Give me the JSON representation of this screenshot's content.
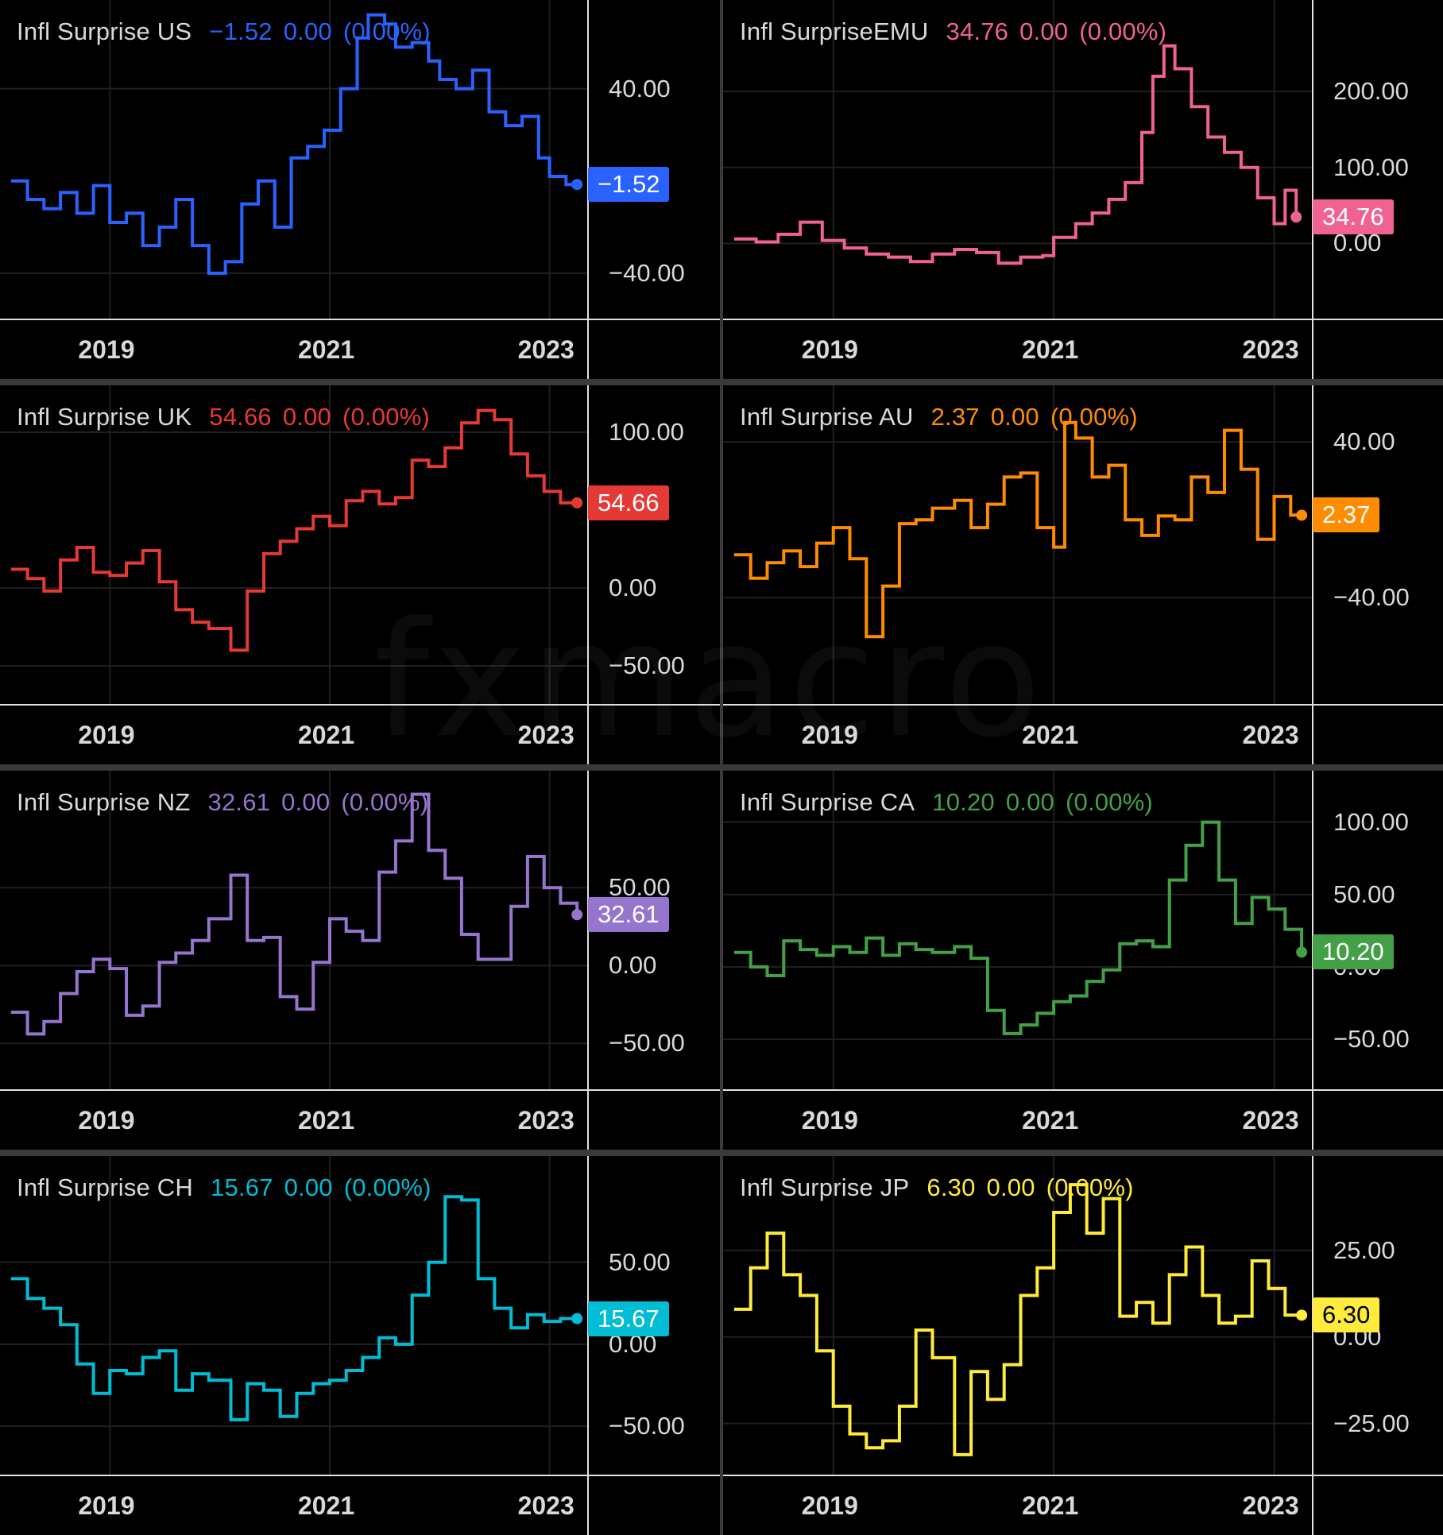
{
  "watermark": "fxmacro",
  "chart_data": [
    {
      "type": "line",
      "name": "Infl Surprise US",
      "value": "−1.52",
      "change": "0.00",
      "change_pct": "(0.00%)",
      "last_label": "−1.52",
      "color": "#2962ff",
      "x_ticks": [
        "2019",
        "2021",
        "2023"
      ],
      "y_ticks": [
        {
          "v": 40,
          "label": "40.00"
        },
        {
          "v": -40,
          "label": "−40.00"
        }
      ],
      "ylim": [
        -60,
        75
      ],
      "x": [
        2018.1,
        2018.25,
        2018.4,
        2018.55,
        2018.7,
        2018.85,
        2019.0,
        2019.15,
        2019.3,
        2019.45,
        2019.6,
        2019.75,
        2019.9,
        2020.05,
        2020.2,
        2020.35,
        2020.5,
        2020.65,
        2020.8,
        2020.95,
        2021.1,
        2021.25,
        2021.35,
        2021.5,
        2021.6,
        2021.75,
        2021.9,
        2022.0,
        2022.15,
        2022.3,
        2022.45,
        2022.6,
        2022.75,
        2022.9,
        2023.0,
        2023.15,
        2023.25
      ],
      "y": [
        0,
        -8,
        -12,
        -5,
        -14,
        -2,
        -18,
        -14,
        -28,
        -20,
        -8,
        -28,
        -40,
        -35,
        -10,
        0,
        -20,
        10,
        15,
        22,
        40,
        62,
        72,
        68,
        58,
        60,
        52,
        44,
        40,
        48,
        30,
        24,
        28,
        10,
        2,
        -1.52,
        -1.52
      ]
    },
    {
      "type": "line",
      "name": "Infl SurpriseEMU",
      "value": "34.76",
      "change": "0.00",
      "change_pct": "(0.00%)",
      "last_label": "34.76",
      "color": "#f06292",
      "x_ticks": [
        "2019",
        "2021",
        "2023"
      ],
      "y_ticks": [
        {
          "v": 200,
          "label": "200.00"
        },
        {
          "v": 100,
          "label": "100.00"
        },
        {
          "v": 0,
          "label": "0.00"
        }
      ],
      "ylim": [
        -100,
        310
      ],
      "x": [
        2018.1,
        2018.3,
        2018.5,
        2018.7,
        2018.9,
        2019.1,
        2019.3,
        2019.5,
        2019.7,
        2019.9,
        2020.1,
        2020.3,
        2020.5,
        2020.7,
        2020.9,
        2021.0,
        2021.2,
        2021.35,
        2021.5,
        2021.65,
        2021.8,
        2021.9,
        2022.0,
        2022.1,
        2022.25,
        2022.4,
        2022.55,
        2022.7,
        2022.85,
        2023.0,
        2023.1,
        2023.2
      ],
      "y": [
        6,
        2,
        12,
        28,
        4,
        -6,
        -14,
        -18,
        -24,
        -14,
        -8,
        -12,
        -26,
        -18,
        -16,
        8,
        26,
        40,
        58,
        80,
        146,
        220,
        260,
        230,
        180,
        140,
        120,
        100,
        60,
        26,
        70,
        34.76
      ]
    },
    {
      "type": "line",
      "name": "Infl Surprise UK",
      "value": "54.66",
      "change": "0.00",
      "change_pct": "(0.00%)",
      "last_label": "54.66",
      "color": "#e53935",
      "x_ticks": [
        "2019",
        "2021",
        "2023"
      ],
      "y_ticks": [
        {
          "v": 100,
          "label": "100.00"
        },
        {
          "v": 0,
          "label": "0.00"
        },
        {
          "v": -50,
          "label": "−50.00"
        }
      ],
      "ylim": [
        -75,
        125
      ],
      "x": [
        2018.1,
        2018.25,
        2018.4,
        2018.55,
        2018.7,
        2018.85,
        2019.0,
        2019.15,
        2019.3,
        2019.45,
        2019.6,
        2019.75,
        2019.9,
        2020.1,
        2020.25,
        2020.4,
        2020.55,
        2020.7,
        2020.85,
        2021.0,
        2021.15,
        2021.3,
        2021.45,
        2021.6,
        2021.75,
        2021.9,
        2022.05,
        2022.2,
        2022.35,
        2022.5,
        2022.65,
        2022.8,
        2022.95,
        2023.1,
        2023.25
      ],
      "y": [
        12,
        6,
        -2,
        18,
        26,
        10,
        8,
        16,
        24,
        4,
        -14,
        -22,
        -26,
        -40,
        -2,
        22,
        30,
        38,
        46,
        40,
        56,
        62,
        54,
        58,
        82,
        78,
        90,
        106,
        114,
        108,
        86,
        72,
        62,
        54.66,
        54.66
      ]
    },
    {
      "type": "line",
      "name": "Infl Surprise AU",
      "value": "2.37",
      "change": "0.00",
      "change_pct": "(0.00%)",
      "last_label": "2.37",
      "color": "#ff8c00",
      "x_ticks": [
        "2019",
        "2021",
        "2023"
      ],
      "y_ticks": [
        {
          "v": 40,
          "label": "40.00"
        },
        {
          "v": -40,
          "label": "−40.00"
        }
      ],
      "ylim": [
        -95,
        65
      ],
      "x": [
        2018.1,
        2018.25,
        2018.4,
        2018.55,
        2018.7,
        2018.85,
        2019.0,
        2019.15,
        2019.3,
        2019.45,
        2019.6,
        2019.75,
        2019.9,
        2020.1,
        2020.25,
        2020.4,
        2020.55,
        2020.7,
        2020.85,
        2021.0,
        2021.1,
        2021.2,
        2021.35,
        2021.5,
        2021.65,
        2021.8,
        2021.95,
        2022.1,
        2022.25,
        2022.4,
        2022.55,
        2022.7,
        2022.85,
        2023.0,
        2023.15,
        2023.25
      ],
      "y": [
        -18,
        -30,
        -22,
        -16,
        -24,
        -12,
        -4,
        -20,
        -60,
        -34,
        -2,
        0,
        6,
        10,
        -4,
        8,
        22,
        24,
        -4,
        -14,
        50,
        42,
        22,
        28,
        0,
        -8,
        2,
        0,
        22,
        14,
        46,
        26,
        -10,
        12,
        2.37,
        2.37
      ]
    },
    {
      "type": "line",
      "name": "Infl Surprise NZ",
      "value": "32.61",
      "change": "0.00",
      "change_pct": "(0.00%)",
      "last_label": "32.61",
      "color": "#9575cd",
      "x_ticks": [
        "2019",
        "2021",
        "2023"
      ],
      "y_ticks": [
        {
          "v": 50,
          "label": "50.00"
        },
        {
          "v": 0,
          "label": "0.00"
        },
        {
          "v": -50,
          "label": "−50.00"
        }
      ],
      "ylim": [
        -80,
        120
      ],
      "x": [
        2018.1,
        2018.25,
        2018.4,
        2018.55,
        2018.7,
        2018.85,
        2019.0,
        2019.15,
        2019.3,
        2019.45,
        2019.6,
        2019.75,
        2019.9,
        2020.1,
        2020.25,
        2020.4,
        2020.55,
        2020.7,
        2020.85,
        2021.0,
        2021.15,
        2021.3,
        2021.45,
        2021.6,
        2021.75,
        2021.9,
        2022.05,
        2022.2,
        2022.35,
        2022.5,
        2022.65,
        2022.8,
        2022.95,
        2023.1,
        2023.25
      ],
      "y": [
        -30,
        -44,
        -36,
        -18,
        -4,
        4,
        -2,
        -32,
        -26,
        2,
        8,
        16,
        30,
        58,
        16,
        18,
        -20,
        -28,
        2,
        30,
        22,
        16,
        60,
        80,
        110,
        74,
        56,
        20,
        4,
        4,
        38,
        70,
        50,
        40,
        32.61
      ]
    },
    {
      "type": "line",
      "name": "Infl Surprise CA",
      "value": "10.20",
      "change": "0.00",
      "change_pct": "(0.00%)",
      "last_label": "10.20",
      "color": "#43a047",
      "x_ticks": [
        "2019",
        "2021",
        "2023"
      ],
      "y_ticks": [
        {
          "v": 100,
          "label": "100.00"
        },
        {
          "v": 50,
          "label": "50.00"
        },
        {
          "v": 0,
          "label": "0.00"
        },
        {
          "v": -50,
          "label": "−50.00"
        }
      ],
      "ylim": [
        -85,
        130
      ],
      "x": [
        2018.1,
        2018.25,
        2018.4,
        2018.55,
        2018.7,
        2018.85,
        2019.0,
        2019.15,
        2019.3,
        2019.45,
        2019.6,
        2019.75,
        2019.9,
        2020.1,
        2020.25,
        2020.4,
        2020.55,
        2020.7,
        2020.85,
        2021.0,
        2021.15,
        2021.3,
        2021.45,
        2021.6,
        2021.75,
        2021.9,
        2022.05,
        2022.2,
        2022.35,
        2022.5,
        2022.65,
        2022.8,
        2022.95,
        2023.1,
        2023.25
      ],
      "y": [
        10,
        0,
        -6,
        18,
        12,
        8,
        14,
        10,
        20,
        8,
        16,
        12,
        10,
        14,
        6,
        -30,
        -46,
        -40,
        -32,
        -24,
        -20,
        -10,
        -2,
        16,
        18,
        14,
        60,
        84,
        100,
        60,
        30,
        48,
        40,
        26,
        10.2
      ]
    },
    {
      "type": "line",
      "name": "Infl Surprise CH",
      "value": "15.67",
      "change": "0.00",
      "change_pct": "(0.00%)",
      "last_label": "15.67",
      "color": "#00bcd4",
      "x_ticks": [
        "2019",
        "2021",
        "2023"
      ],
      "y_ticks": [
        {
          "v": 50,
          "label": "50.00"
        },
        {
          "v": 0,
          "label": "0.00"
        },
        {
          "v": -50,
          "label": "−50.00"
        }
      ],
      "ylim": [
        -80,
        110
      ],
      "x": [
        2018.1,
        2018.25,
        2018.4,
        2018.55,
        2018.7,
        2018.85,
        2019.0,
        2019.15,
        2019.3,
        2019.45,
        2019.6,
        2019.75,
        2019.9,
        2020.1,
        2020.25,
        2020.4,
        2020.55,
        2020.7,
        2020.85,
        2021.0,
        2021.15,
        2021.3,
        2021.45,
        2021.6,
        2021.75,
        2021.9,
        2022.05,
        2022.2,
        2022.35,
        2022.5,
        2022.65,
        2022.8,
        2022.95,
        2023.1,
        2023.25
      ],
      "y": [
        40,
        28,
        22,
        12,
        -12,
        -30,
        -16,
        -18,
        -8,
        -4,
        -28,
        -18,
        -22,
        -46,
        -24,
        -28,
        -44,
        -30,
        -24,
        -22,
        -16,
        -8,
        4,
        0,
        30,
        50,
        90,
        88,
        40,
        22,
        10,
        18,
        14,
        15.67,
        15.67
      ]
    },
    {
      "type": "line",
      "name": "Infl Surprise JP",
      "value": "6.30",
      "change": "0.00",
      "change_pct": "(0.00%)",
      "last_label": "6.30",
      "color": "#ffeb3b",
      "x_ticks": [
        "2019",
        "2021",
        "2023"
      ],
      "y_ticks": [
        {
          "v": 25,
          "label": "25.00"
        },
        {
          "v": 0,
          "label": "0.00"
        },
        {
          "v": -25,
          "label": "−25.00"
        }
      ],
      "ylim": [
        -40,
        50
      ],
      "x": [
        2018.1,
        2018.25,
        2018.4,
        2018.55,
        2018.7,
        2018.85,
        2019.0,
        2019.15,
        2019.3,
        2019.45,
        2019.6,
        2019.75,
        2019.9,
        2020.1,
        2020.25,
        2020.4,
        2020.55,
        2020.7,
        2020.85,
        2021.0,
        2021.15,
        2021.3,
        2021.45,
        2021.6,
        2021.75,
        2021.9,
        2022.05,
        2022.2,
        2022.35,
        2022.5,
        2022.65,
        2022.8,
        2022.95,
        2023.1,
        2023.25
      ],
      "y": [
        8,
        20,
        30,
        18,
        12,
        -4,
        -20,
        -28,
        -32,
        -30,
        -20,
        2,
        -6,
        -34,
        -10,
        -18,
        -8,
        12,
        20,
        36,
        44,
        30,
        40,
        6,
        10,
        4,
        18,
        26,
        12,
        4,
        6,
        22,
        14,
        6.3,
        6.3
      ]
    }
  ]
}
